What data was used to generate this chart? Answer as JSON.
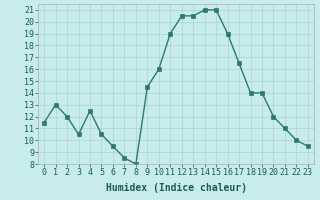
{
  "x": [
    0,
    1,
    2,
    3,
    4,
    5,
    6,
    7,
    8,
    9,
    10,
    11,
    12,
    13,
    14,
    15,
    16,
    17,
    18,
    19,
    20,
    21,
    22,
    23
  ],
  "y": [
    11.5,
    13,
    12,
    10.5,
    12.5,
    10.5,
    9.5,
    8.5,
    8,
    14.5,
    16,
    19,
    20.5,
    20.5,
    21,
    21,
    19,
    16.5,
    14,
    14,
    12,
    11,
    10,
    9.5
  ],
  "line_color": "#2d7a6a",
  "marker": "s",
  "marker_size": 2.5,
  "line_width": 1.0,
  "bg_color": "#c8ecec",
  "grid_color": "#aad4d4",
  "xlabel": "Humidex (Indice chaleur)",
  "xlabel_fontsize": 7,
  "tick_fontsize": 6,
  "xlim": [
    -0.5,
    23.5
  ],
  "ylim": [
    8,
    21.5
  ],
  "yticks": [
    8,
    9,
    10,
    11,
    12,
    13,
    14,
    15,
    16,
    17,
    18,
    19,
    20,
    21
  ],
  "xticks": [
    0,
    1,
    2,
    3,
    4,
    5,
    6,
    7,
    8,
    9,
    10,
    11,
    12,
    13,
    14,
    15,
    16,
    17,
    18,
    19,
    20,
    21,
    22,
    23
  ]
}
